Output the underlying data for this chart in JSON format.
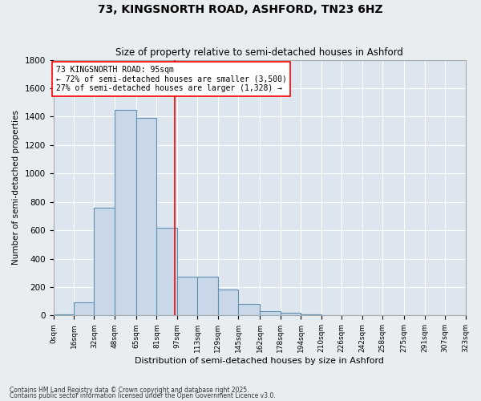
{
  "title": "73, KINGSNORTH ROAD, ASHFORD, TN23 6HZ",
  "subtitle": "Size of property relative to semi-detached houses in Ashford",
  "xlabel": "Distribution of semi-detached houses by size in Ashford",
  "ylabel": "Number of semi-detached properties",
  "bar_color": "#c8d8e8",
  "bar_edge_color": "#6090b0",
  "background_color": "#dde6ef",
  "grid_color": "#ffffff",
  "property_line_x": 95,
  "property_size": 95,
  "pct_smaller": 72,
  "count_smaller": 3500,
  "pct_larger": 27,
  "count_larger": 1328,
  "annotation_label": "73 KINGSNORTH ROAD: 95sqm",
  "bins": [
    0,
    16,
    32,
    48,
    65,
    81,
    97,
    113,
    129,
    145,
    162,
    178,
    194,
    210,
    226,
    242,
    258,
    275,
    291,
    307,
    323
  ],
  "bin_labels": [
    "0sqm",
    "16sqm",
    "32sqm",
    "48sqm",
    "65sqm",
    "81sqm",
    "97sqm",
    "113sqm",
    "129sqm",
    "145sqm",
    "162sqm",
    "178sqm",
    "194sqm",
    "210sqm",
    "226sqm",
    "242sqm",
    "258sqm",
    "275sqm",
    "291sqm",
    "307sqm",
    "323sqm"
  ],
  "counts": [
    5,
    90,
    760,
    1450,
    1390,
    615,
    275,
    275,
    185,
    80,
    30,
    20,
    5,
    3,
    2,
    1,
    1,
    1,
    0,
    0
  ],
  "ylim": [
    0,
    1800
  ],
  "yticks": [
    0,
    200,
    400,
    600,
    800,
    1000,
    1200,
    1400,
    1600,
    1800
  ],
  "footnote1": "Contains HM Land Registry data © Crown copyright and database right 2025.",
  "footnote2": "Contains public sector information licensed under the Open Government Licence v3.0."
}
